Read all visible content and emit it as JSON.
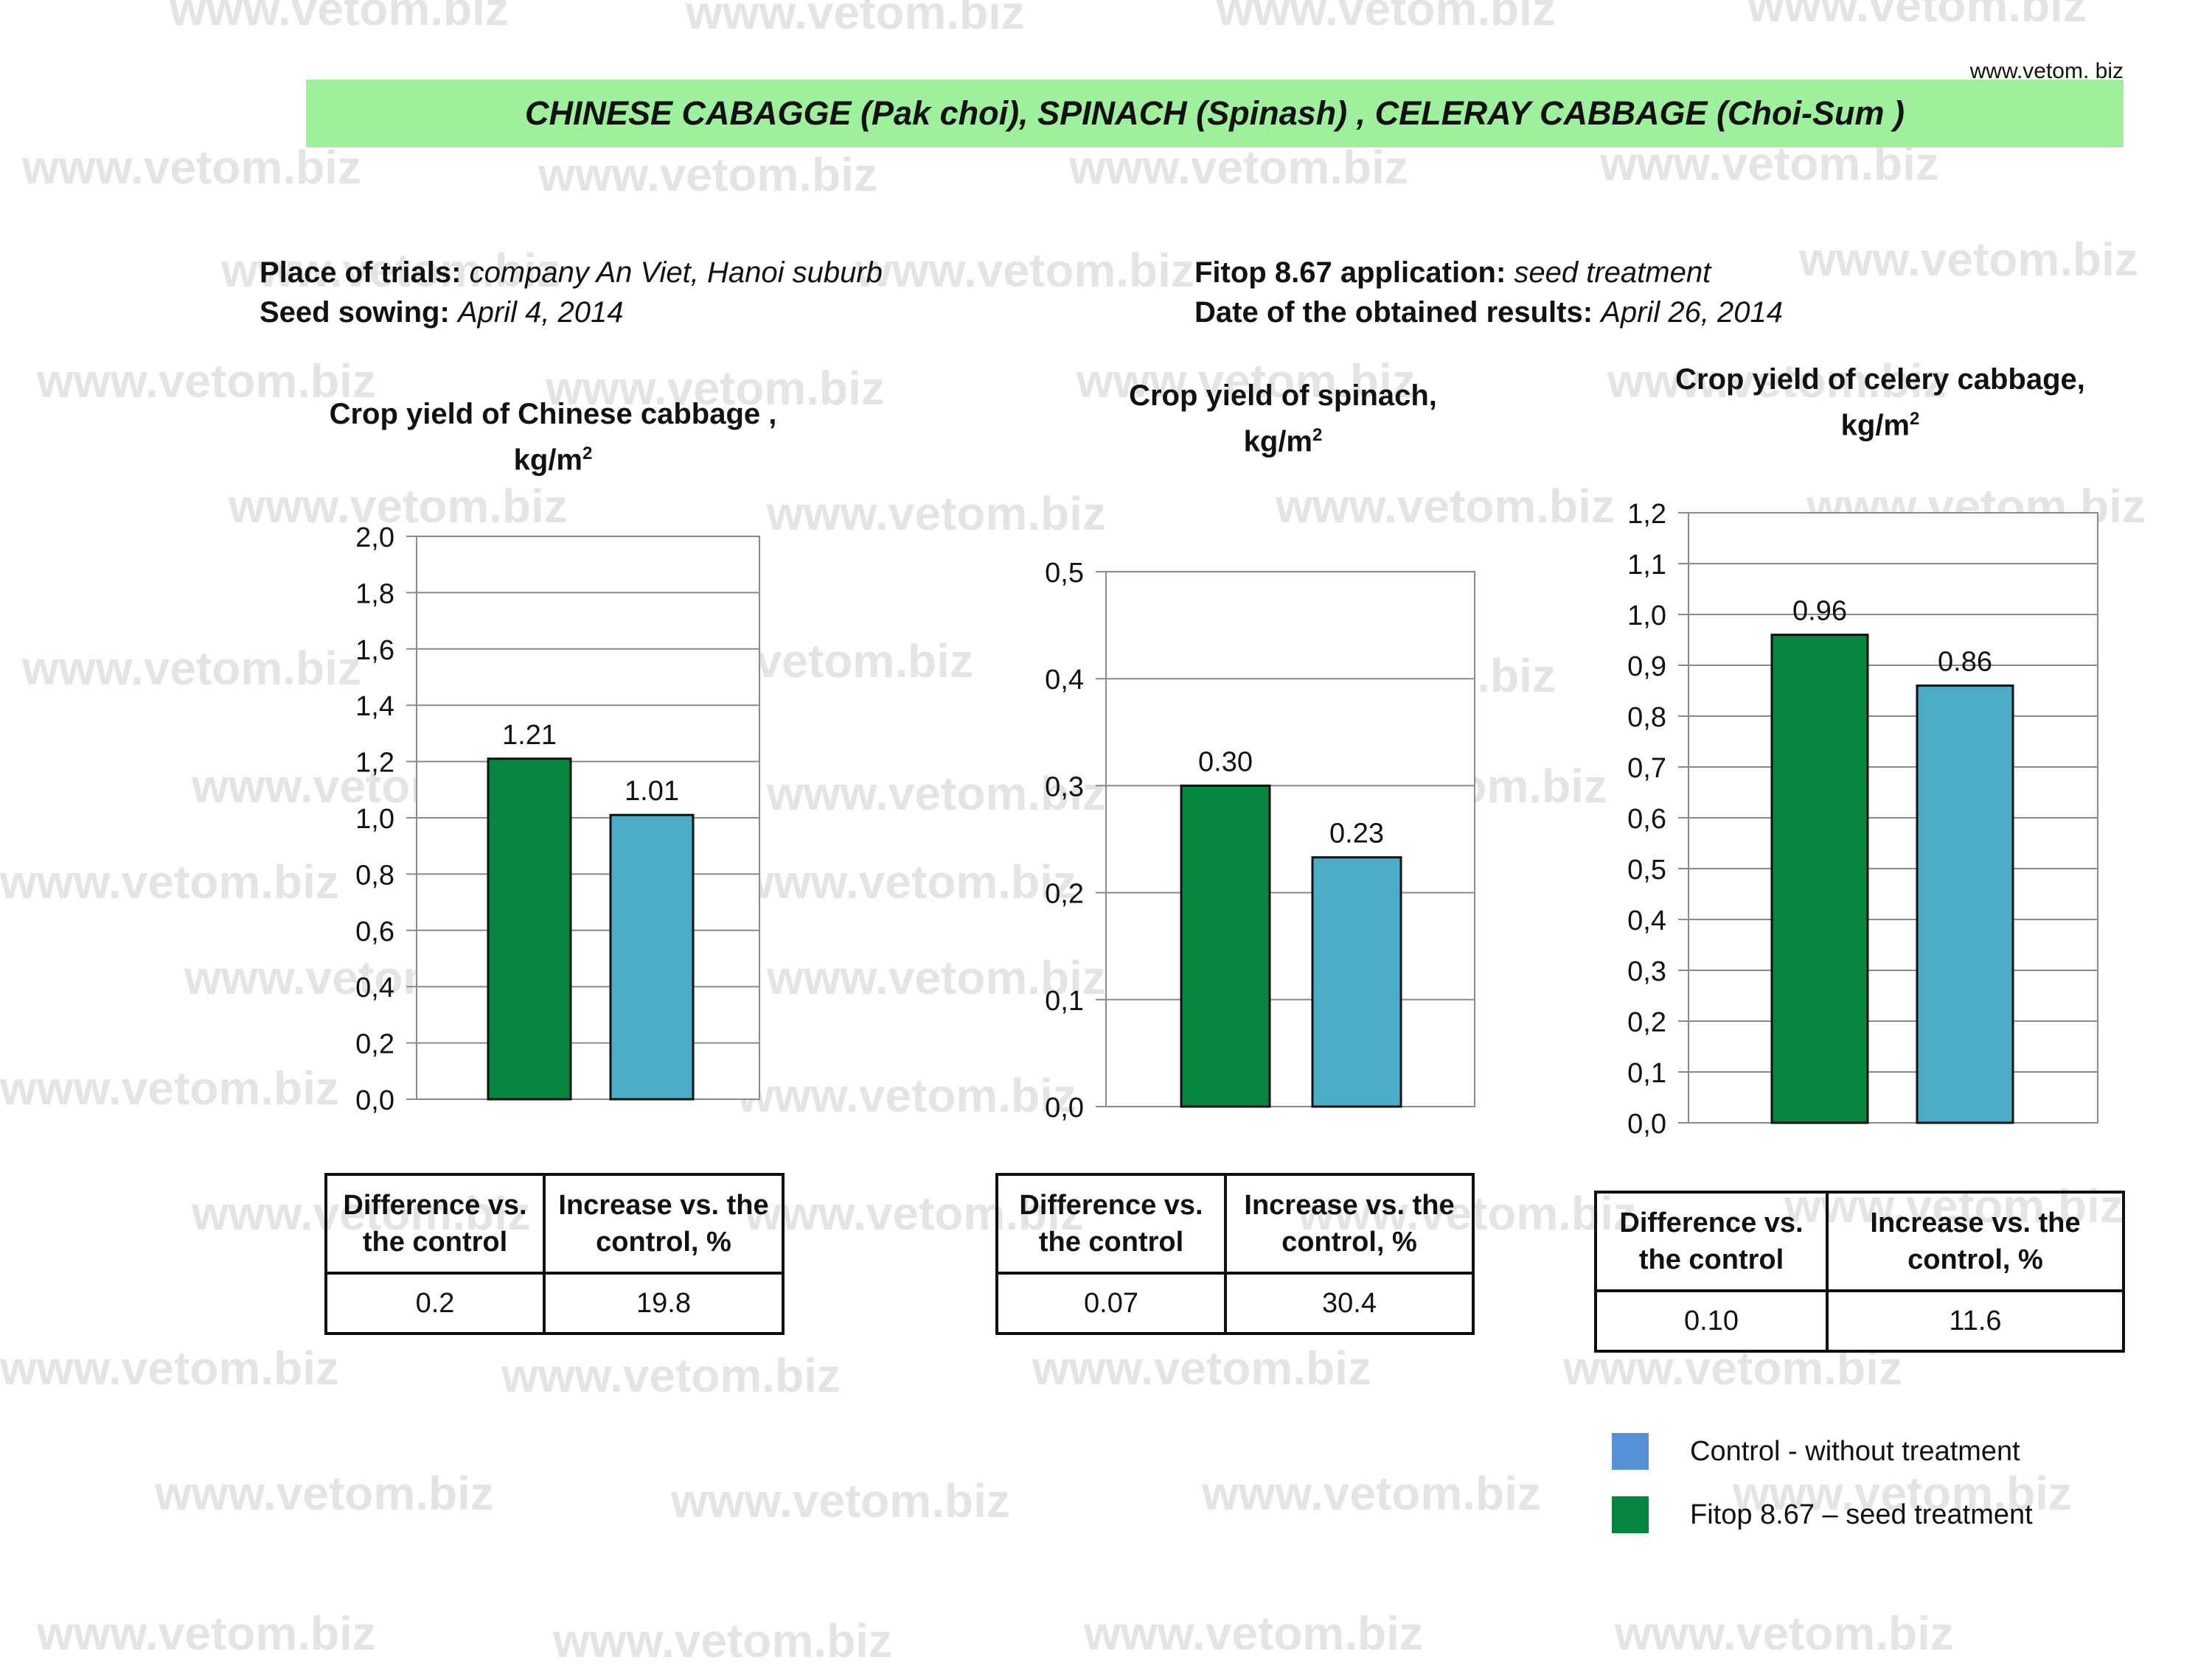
{
  "watermark": "www.vetom.biz",
  "site_link": "www.vetom. biz",
  "title": "CHINESE CABAGGE (Pak choi), SPINACH  (Spinash) , CELERAY  CABBAGE (Choi-Sum )",
  "info": {
    "place_label": "Place of trials:",
    "place_value": "company An Viet, Hanoi suburb",
    "sowing_label": "Seed sowing:",
    "sowing_value": "April  4, 2014",
    "application_label": "Fitop 8.67 application:",
    "application_value": "seed treatment",
    "results_label": "Date of  the obtained results:",
    "results_value": "April  26, 2014"
  },
  "colors": {
    "treatment": "#05853e",
    "control": "#4bacc6",
    "legend_control": "#5591d6",
    "banner": "#9ef09c"
  },
  "chart_data": [
    {
      "type": "bar",
      "title_line1": "Crop yield of  Chinese cabbage ,",
      "title_line2": "kg/m",
      "title_sup": "2",
      "categories": [
        "Fitop 8.67 – seed treatment",
        "Control - without treatment"
      ],
      "values": [
        1.21,
        1.01
      ],
      "value_labels": [
        "1.21",
        "1.01"
      ],
      "ylim": [
        0,
        2.0
      ],
      "yticks": [
        "0,0",
        "0,2",
        "0,4",
        "0,6",
        "0,8",
        "1,0",
        "1,2",
        "1,4",
        "1,6",
        "1,8",
        "2,0"
      ],
      "grid": true,
      "table": {
        "diff_header": "Difference vs. the control",
        "inc_header": "Increase vs. the control, %",
        "diff": "0.2",
        "inc": "19.8"
      }
    },
    {
      "type": "bar",
      "title_line1": "Crop yield of spinach,",
      "title_line2": "kg/m",
      "title_sup": "2",
      "categories": [
        "Fitop 8.67 – seed treatment",
        "Control - without treatment"
      ],
      "values": [
        0.3,
        0.233
      ],
      "value_labels": [
        "0.30",
        "0.23"
      ],
      "ylim": [
        0,
        0.5
      ],
      "yticks": [
        "0,0",
        "0,1",
        "0,2",
        "0,3",
        "0,4",
        "0,5"
      ],
      "grid": true,
      "table": {
        "diff_header": "Difference vs. the control",
        "inc_header": "Increase vs. the control, %",
        "diff": "0.07",
        "inc": "30.4"
      }
    },
    {
      "type": "bar",
      "title_line1": "Crop yield of celery cabbage,",
      "title_line2": "kg/m",
      "title_sup": "2",
      "categories": [
        "Fitop 8.67 – seed treatment",
        "Control - without treatment"
      ],
      "values": [
        0.96,
        0.86
      ],
      "value_labels": [
        "0.96",
        "0.86"
      ],
      "ylim": [
        0,
        1.2
      ],
      "yticks": [
        "0,0",
        "0,1",
        "0,2",
        "0,3",
        "0,4",
        "0,5",
        "0,6",
        "0,7",
        "0,8",
        "0,9",
        "1,0",
        "1,1",
        "1,2"
      ],
      "grid": true,
      "table": {
        "diff_header": "Difference vs. the control",
        "inc_header": "Increase vs. the control, %",
        "diff": "0.10",
        "inc": "11.6"
      }
    }
  ],
  "legend": [
    {
      "label": "Control - without treatment",
      "color": "#5591d6"
    },
    {
      "label": "Fitop 8.67 – seed treatment",
      "color": "#05853e"
    }
  ]
}
